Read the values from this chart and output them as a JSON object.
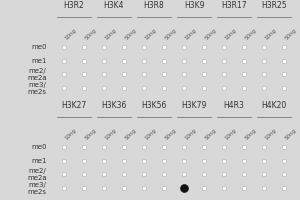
{
  "background_color": "#d8d8d8",
  "panel_bg": "#d8d8d8",
  "dot_empty_color": "#ffffff",
  "dot_empty_edge": "#aaaaaa",
  "dot_filled_color": "#111111",
  "top_groups": [
    "H3R2",
    "H3K4",
    "H3R8",
    "H3K9",
    "H3R17",
    "H3R25"
  ],
  "bottom_groups": [
    "H3K27",
    "H3K36",
    "H3K56",
    "H3K79",
    "H4R3",
    "H4K20"
  ],
  "row_labels_top": [
    "me0",
    "me1",
    "me2/\nme2a",
    "me3/\nme2s"
  ],
  "row_labels_bottom": [
    "me0",
    "me1",
    "me2/\nme2a",
    "me3/\nme2s"
  ],
  "col_sublabels": [
    "10ng",
    "50ng"
  ],
  "filled_dot": {
    "panel": "bottom",
    "group_idx": 3,
    "row_idx": 3,
    "col_idx": 0
  },
  "group_label_fontsize": 5.5,
  "row_label_fontsize": 5.0,
  "tick_label_fontsize": 4.0
}
